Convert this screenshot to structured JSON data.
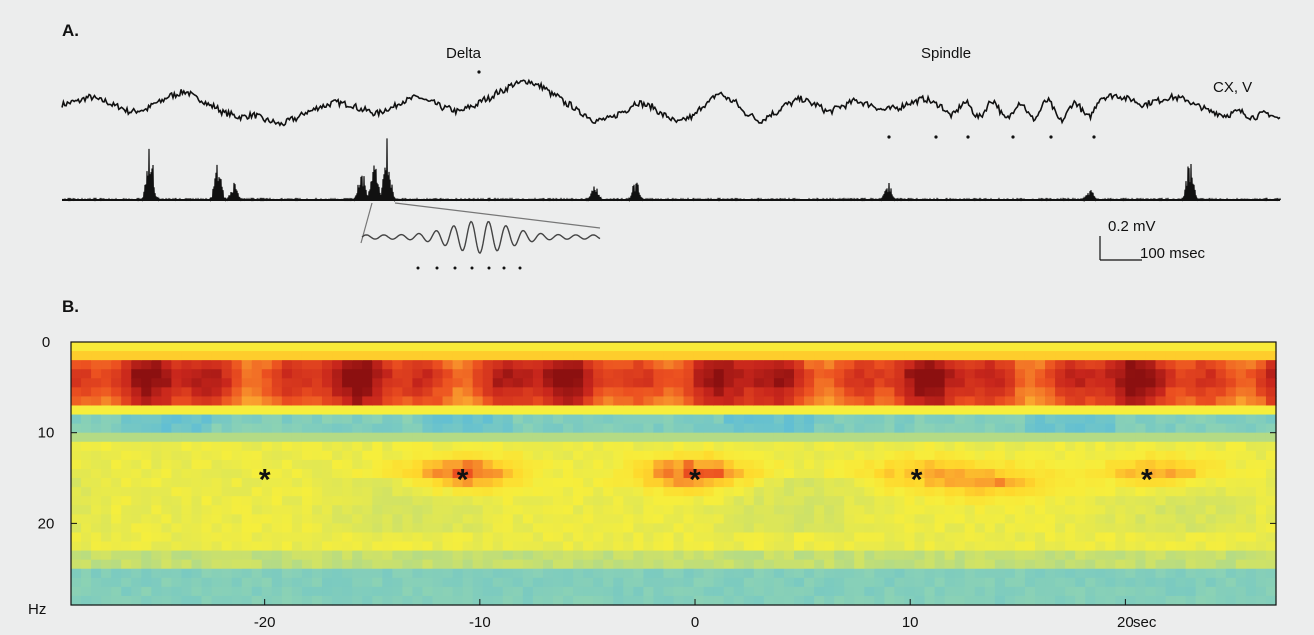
{
  "panel_a_label": "A.",
  "panel_b_label": "B.",
  "chart_data": [
    {
      "type": "line",
      "panel": "A.",
      "annotations": [
        {
          "text": "Delta"
        },
        {
          "text": "Spindle"
        },
        {
          "text": "CX, V"
        }
      ],
      "scale_bar": {
        "amplitude_label": "0.2 mV",
        "time_label": "100 msec"
      },
      "series": [
        {
          "name": "CX, V",
          "values": [
            0.2,
            0.35,
            0.6,
            0.4,
            0.1,
            -0.2,
            -0.1,
            0.3,
            0.7,
            0.9,
            0.5,
            0.1,
            -0.3,
            -0.5,
            -0.4,
            -0.7,
            -0.9,
            -0.6,
            -0.2,
            0.1,
            0.3,
            0.2,
            -0.1,
            -0.3,
            0.0,
            0.4,
            0.6,
            0.3,
            0.0,
            -0.2,
            0.1,
            0.5,
            0.9,
            1.3,
            1.5,
            1.2,
            0.7,
            0.2,
            -0.3,
            -0.7,
            -0.6,
            -0.2,
            0.3,
            0.1,
            -0.4,
            -0.8,
            -0.5,
            0.2,
            0.8,
            0.4,
            -0.3,
            -0.7,
            -0.3,
            0.2,
            0.5,
            0.2,
            -0.2,
            0.1,
            0.4,
            0.2,
            -0.1,
            0.0,
            0.3,
            0.5,
            0.2,
            -0.4,
            0.3,
            -0.5,
            0.4,
            -0.6,
            0.3,
            -0.6,
            0.4,
            -0.7,
            0.3,
            -0.5,
            0.6,
            0.7,
            0.5,
            0.2,
            0.4,
            0.6,
            0.5,
            0.1,
            -0.2,
            -0.4,
            -0.2,
            -0.5,
            -0.3,
            -0.6
          ]
        }
      ]
    },
    {
      "type": "line",
      "panel": "A.",
      "series": [
        {
          "name": "",
          "bursts": [
            {
              "x": 150,
              "amp": 0.95
            },
            {
              "x": 218,
              "amp": 0.72
            },
            {
              "x": 234,
              "amp": 0.3
            },
            {
              "x": 362,
              "amp": 0.6
            },
            {
              "x": 374,
              "amp": 0.88
            },
            {
              "x": 387,
              "amp": 1.0
            },
            {
              "x": 595,
              "amp": 0.25
            },
            {
              "x": 636,
              "amp": 0.38
            },
            {
              "x": 888,
              "amp": 0.3
            },
            {
              "x": 1090,
              "amp": 0.22
            },
            {
              "x": 1190,
              "amp": 0.75
            }
          ]
        }
      ]
    },
    {
      "type": "heatmap",
      "panel": "B.",
      "xlabel": "sec",
      "ylabel": "Hz",
      "x_ticks": [
        -20,
        -10,
        0,
        10,
        20
      ],
      "y_ticks": [
        0,
        10,
        20
      ],
      "xlim": [
        -29,
        27
      ],
      "ylim": [
        0,
        29
      ],
      "markers": [
        {
          "text": "*",
          "x": -20,
          "y": 14.5
        },
        {
          "text": "*",
          "x": -10.8,
          "y": 14.5
        },
        {
          "text": "*",
          "x": 0,
          "y": 14.5
        },
        {
          "text": "*",
          "x": 10.3,
          "y": 14.5
        },
        {
          "text": "*",
          "x": 21,
          "y": 14.5
        }
      ],
      "spindle_power_peaks": [
        {
          "x": -10.8,
          "y": 14.5,
          "strength": 0.9
        },
        {
          "x": 0,
          "y": 14.5,
          "strength": 0.9
        },
        {
          "x": 10.5,
          "y": 14.5,
          "strength": 0.5
        },
        {
          "x": 14,
          "y": 15.5,
          "strength": 0.55
        },
        {
          "x": 21.5,
          "y": 14.5,
          "strength": 0.6
        }
      ],
      "colors": {
        "low": "#3ab7e4",
        "mid": "#ffec2c",
        "high": "#e0331c",
        "max": "#8d1010"
      }
    }
  ]
}
